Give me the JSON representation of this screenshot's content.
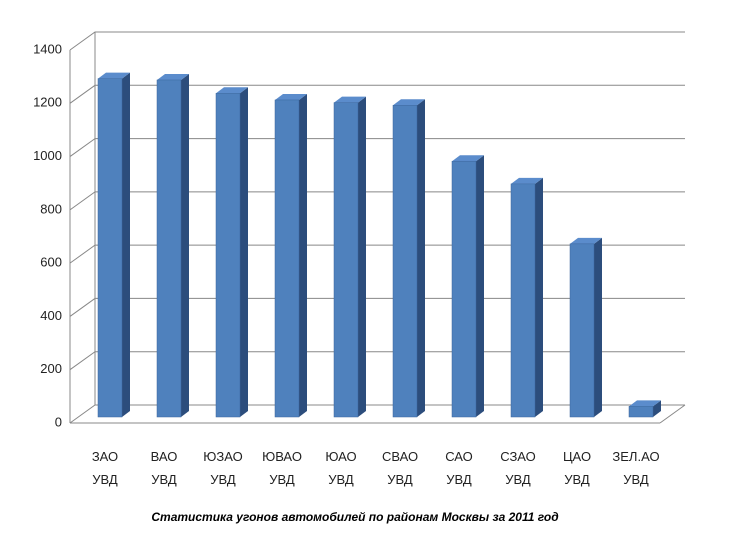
{
  "chart_data": {
    "type": "bar3d",
    "title": "Статистика угонов автомобилей по районам Москвы за 2011 год",
    "categories": [
      "ЗАО УВД",
      "ВАО УВД",
      "ЮЗАО УВД",
      "ЮВАО УВД",
      "ЮАО УВД",
      "СВАО УВД",
      "САО УВД",
      "СЗАО УВД",
      "ЦАО УВД",
      "ЗЕЛ.АО УВД"
    ],
    "values": [
      1270,
      1265,
      1215,
      1190,
      1180,
      1170,
      960,
      875,
      650,
      40
    ],
    "color": "#4f81bd",
    "ylim": [
      0,
      1400
    ],
    "yticks": [
      0,
      200,
      400,
      600,
      800,
      1000,
      1200,
      1400
    ],
    "grid": true
  }
}
